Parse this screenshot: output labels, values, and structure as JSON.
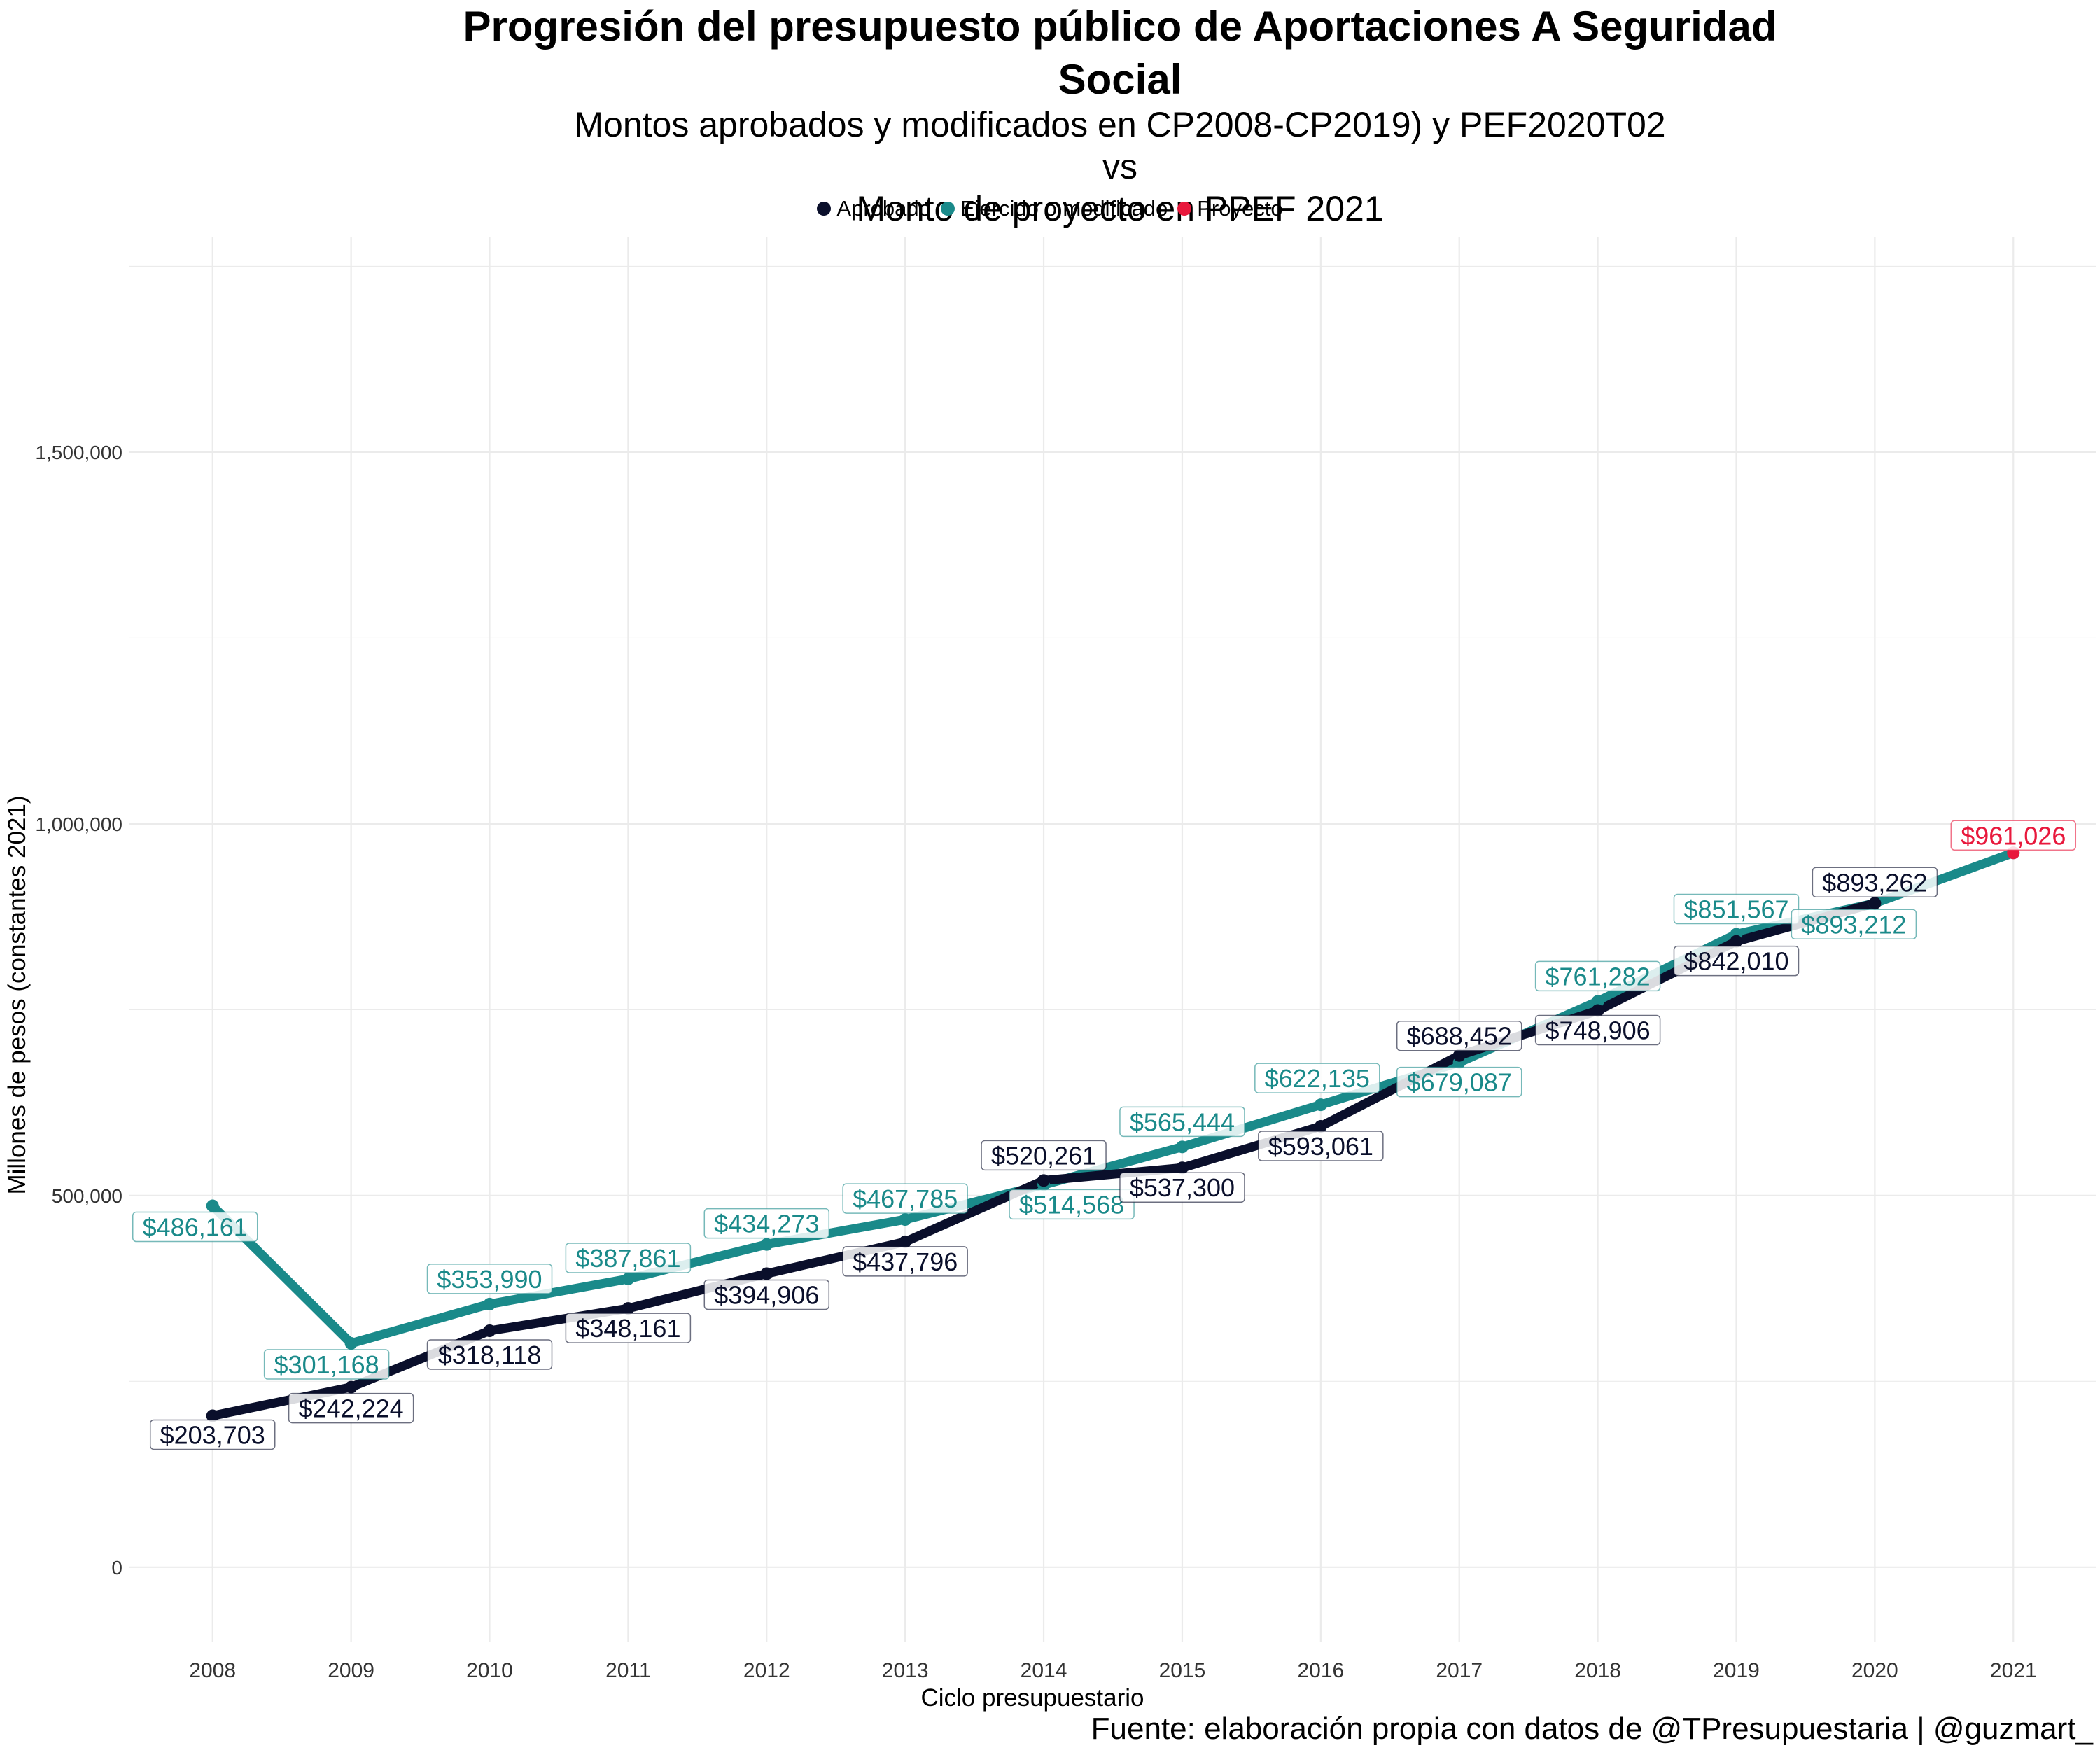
{
  "chart_data": {
    "type": "line",
    "title": "Progresión del presupuesto público de Aportaciones A Seguridad Social",
    "subtitle_lines": [
      "Montos aprobados y modificados en CP2008-CP2019) y PEF2020T02 vs",
      "Monto de proyecto en PPEF 2021"
    ],
    "xlabel": "Ciclo presupuestario",
    "ylabel": "Millones de pesos (constantes 2021)",
    "caption": "Fuente: elaboración propia con datos de @TPresupuestaria | @guzmart_",
    "x": [
      2008,
      2009,
      2010,
      2011,
      2012,
      2013,
      2014,
      2015,
      2016,
      2017,
      2018,
      2019,
      2020,
      2021
    ],
    "xlim": [
      2007.4,
      2021.6
    ],
    "ylim": [
      -100000,
      1790000
    ],
    "yticks": [
      0,
      500000,
      1000000,
      1500000
    ],
    "ytick_labels": [
      "0",
      "500,000",
      "1,000,000",
      "1,500,000"
    ],
    "grid": true,
    "legend_position": "top",
    "series": [
      {
        "name": "Aprobado",
        "color": "#0a0f2b",
        "x": [
          2008,
          2009,
          2010,
          2011,
          2012,
          2013,
          2014,
          2015,
          2016,
          2017,
          2018,
          2019,
          2020
        ],
        "values": [
          203703,
          242224,
          318118,
          348161,
          394906,
          437796,
          520261,
          537300,
          593061,
          688452,
          748906,
          842010,
          893262
        ],
        "labels": [
          "$203,703",
          "$242,224",
          "$318,118",
          "$348,161",
          "$394,906",
          "$437,796",
          "$520,261",
          "$537,300",
          "$593,061",
          "$688,452",
          "$748,906",
          "$842,010",
          "$893,262"
        ]
      },
      {
        "name": "Ejercido o modificado",
        "color": "#1a8a8a",
        "x": [
          2008,
          2009,
          2010,
          2011,
          2012,
          2013,
          2014,
          2015,
          2016,
          2017,
          2018,
          2019,
          2020,
          2021
        ],
        "values": [
          486161,
          301168,
          353990,
          387861,
          434273,
          467785,
          514568,
          565444,
          622135,
          679087,
          761282,
          851567,
          893212,
          961026
        ],
        "labels": [
          "$486,161",
          "$301,168",
          "$353,990",
          "$387,861",
          "$434,273",
          "$467,785",
          "$514,568",
          "$565,444",
          "$622,135",
          "$679,087",
          "$761,282",
          "$851,567",
          "$893,212",
          ""
        ]
      },
      {
        "name": "Proyecto",
        "color": "#e8183c",
        "x": [
          2021
        ],
        "values": [
          961026
        ],
        "labels": [
          "$961,026"
        ]
      }
    ]
  }
}
